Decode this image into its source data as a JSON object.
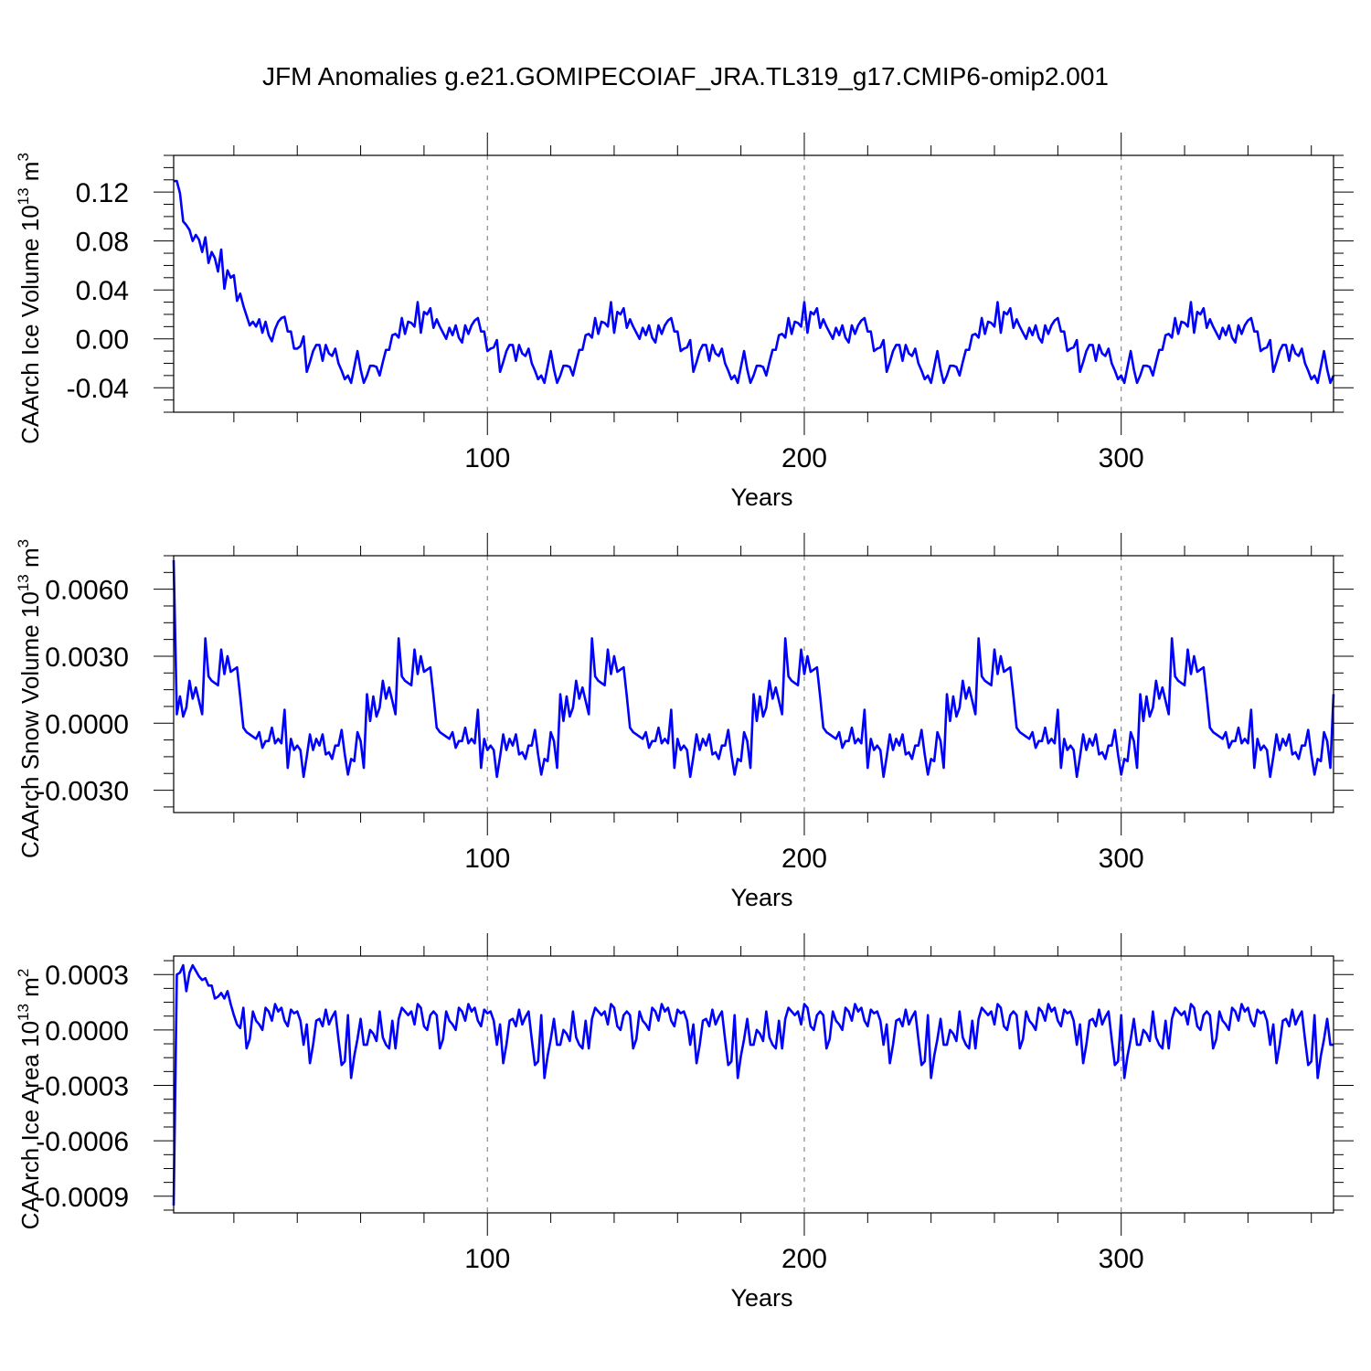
{
  "title": "JFM Anomalies g.e21.GOMIPECOIAF_JRA.TL319_g17.CMIP6-omip2.001",
  "line_color": "#0000ff",
  "chart_data": [
    {
      "type": "line",
      "ylabel": "CAArch Ice Volume 10",
      "ylabel_exp": "13",
      "ylabel_unit": " m",
      "ylabel_unit_exp": "3",
      "xlabel": "Years",
      "xlim": [
        1,
        367
      ],
      "ylim": [
        -0.06,
        0.15
      ],
      "yticks": [
        -0.04,
        0.0,
        0.04,
        0.08,
        0.12
      ],
      "ytick_labels": [
        "-0.04",
        "0.00",
        "0.04",
        "0.08",
        "0.12"
      ],
      "xticks": [
        100,
        200,
        300
      ],
      "xtick_labels": [
        "100",
        "200",
        "300"
      ],
      "grid_x": [
        100,
        200,
        300
      ],
      "initial": [
        0.129,
        0.129,
        0.119,
        0.096,
        0.093,
        0.089,
        0.08,
        0.085,
        0.081,
        0.071,
        0.083,
        0.062,
        0.071,
        0.066,
        0.055,
        0.073,
        0.041,
        0.056,
        0.05,
        0.052,
        0.031,
        0.037,
        0.027,
        0.019,
        0.011,
        0.014,
        0.01,
        0.016,
        0.005,
        0.014,
        0.003,
        -0.002,
        0.008,
        0.014,
        0.017,
        0.018,
        0.006,
        0.006,
        -0.008,
        -0.008,
        -0.006,
        0.002
      ],
      "cycle": [
        -0.027,
        -0.019,
        -0.01,
        -0.005,
        -0.005,
        -0.018,
        -0.005,
        -0.012,
        -0.014,
        -0.008,
        -0.02,
        -0.026,
        -0.033,
        -0.03,
        -0.036,
        -0.023,
        -0.01,
        -0.025,
        -0.036,
        -0.03,
        -0.022,
        -0.022,
        -0.023,
        -0.03,
        -0.019,
        -0.009,
        -0.009,
        0.003,
        0.004,
        0.001,
        0.017,
        0.004,
        0.014,
        0.013,
        0.01,
        0.03,
        0.005,
        0.022,
        0.02,
        0.025,
        0.009,
        0.016,
        0.01,
        0.005,
        0.0,
        0.009,
        0.003,
        0.011,
        0.001,
        -0.003,
        0.011,
        0.004,
        0.011,
        0.015,
        0.017,
        0.006,
        0.006,
        -0.01,
        -0.008,
        -0.007,
        -0.001
      ]
    },
    {
      "type": "line",
      "ylabel": "CAArch Snow Volume 10",
      "ylabel_exp": "13",
      "ylabel_unit": " m",
      "ylabel_unit_exp": "3",
      "xlabel": "Years",
      "xlim": [
        1,
        367
      ],
      "ylim": [
        -0.004,
        0.0075
      ],
      "yticks": [
        -0.003,
        0.0,
        0.003,
        0.006
      ],
      "ytick_labels": [
        "-0.0030",
        "0.0000",
        "0.0030",
        "0.0060"
      ],
      "xticks": [
        100,
        200,
        300
      ],
      "xtick_labels": [
        "100",
        "200",
        "300"
      ],
      "grid_x": [
        100,
        200,
        300
      ],
      "initial": [
        0.0073,
        0.0004
      ],
      "cycle": [
        0.0012,
        0.0003,
        0.0007,
        0.0019,
        0.0011,
        0.0016,
        0.001,
        0.0004,
        0.0038,
        0.0021,
        0.0019,
        0.0018,
        0.0017,
        0.0033,
        0.0022,
        0.003,
        0.0023,
        0.0024,
        0.0025,
        0.0012,
        -0.0002,
        -0.0004,
        -0.0005,
        -0.0006,
        -0.0007,
        -0.0004,
        -0.0011,
        -0.0008,
        -0.0008,
        -0.0002,
        -0.0009,
        -0.0007,
        -0.0009,
        0.0006,
        -0.002,
        -0.0007,
        -0.0012,
        -0.001,
        -0.0012,
        -0.0024,
        -0.0015,
        -0.0005,
        -0.0012,
        -0.0007,
        -0.001,
        -0.0005,
        -0.0014,
        -0.0013,
        -0.0016,
        -0.001,
        -0.001,
        -0.0003,
        -0.0014,
        -0.0023,
        -0.0016,
        -0.0017,
        -0.0004,
        -0.0008,
        -0.002,
        0.0013,
        0.0001
      ]
    },
    {
      "type": "line",
      "ylabel": "CAArch Ice Area 10",
      "ylabel_exp": "13",
      "ylabel_unit": " m",
      "ylabel_unit_exp": "2",
      "xlabel": "Years",
      "xlim": [
        1,
        367
      ],
      "ylim": [
        -0.00099,
        0.0004
      ],
      "yticks": [
        -0.0009,
        -0.0006,
        -0.0003,
        0.0,
        0.0003
      ],
      "ytick_labels": [
        "-0.0009",
        "-0.0006",
        "-0.0003",
        "0.0000",
        "0.0003"
      ],
      "xticks": [
        100,
        200,
        300
      ],
      "xtick_labels": [
        "100",
        "200",
        "300"
      ],
      "grid_x": [
        100,
        200,
        300
      ],
      "initial": [
        -0.00095,
        0.0003,
        0.00031,
        0.00035,
        0.00021,
        0.00031,
        0.00035,
        0.00032,
        0.00029,
        0.00027,
        0.00028,
        0.00024,
        0.00024,
        0.00017,
        0.00018,
        0.0002,
        0.00017,
        0.00021,
        0.00014,
        8e-05,
        3e-05,
        1e-05,
        0.00012
      ],
      "cycle": [
        -0.0001,
        -5e-05,
        0.0001,
        5e-05,
        3e-05,
        0.0,
        0.00012,
        0.0001,
        5e-05,
        0.00014,
        0.0001,
        0.00012,
        5e-05,
        2e-05,
        0.00011,
        9e-05,
        0.0001,
        5e-05,
        -8e-05,
        3e-05,
        -0.00018,
        -8e-05,
        5e-05,
        6e-05,
        2e-05,
        0.00011,
        3e-05,
        7e-05,
        0.0001,
        -5e-05,
        -0.00019,
        -0.00017,
        8e-05,
        -0.00026,
        -0.00014,
        -5e-05,
        6e-05,
        -8e-05,
        -8e-05,
        0.0,
        -2e-05,
        -6e-05,
        0.0001,
        -4e-05,
        -8e-05,
        -0.0001,
        5e-05,
        -0.0001,
        6e-05,
        0.00012,
        0.0001,
        8e-05,
        0.0001,
        3e-05,
        0.00014,
        0.00012,
        2e-05,
        0.0,
        8e-05,
        0.0001,
        8e-05
      ]
    }
  ]
}
